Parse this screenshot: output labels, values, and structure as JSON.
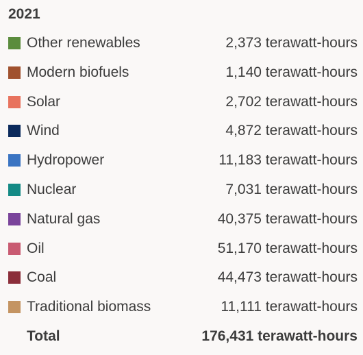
{
  "chart_data": {
    "type": "table",
    "title": "2021",
    "unit": "terawatt-hours",
    "rows": [
      {
        "label": "Other renewables",
        "value": 2373,
        "display": "2,373 terawatt-hours",
        "color": "#5b8c3d"
      },
      {
        "label": "Modern biofuels",
        "value": 1140,
        "display": "1,140 terawatt-hours",
        "color": "#a0512e"
      },
      {
        "label": "Solar",
        "value": 2702,
        "display": "2,702 terawatt-hours",
        "color": "#e8735e"
      },
      {
        "label": "Wind",
        "value": 4872,
        "display": "4,872 terawatt-hours",
        "color": "#0b2a5c"
      },
      {
        "label": "Hydropower",
        "value": 11183,
        "display": "11,183 terawatt-hours",
        "color": "#3a74c2"
      },
      {
        "label": "Nuclear",
        "value": 7031,
        "display": "7,031 terawatt-hours",
        "color": "#148a85"
      },
      {
        "label": "Natural gas",
        "value": 40375,
        "display": "40,375 terawatt-hours",
        "color": "#7a449b"
      },
      {
        "label": "Oil",
        "value": 51170,
        "display": "51,170 terawatt-hours",
        "color": "#c95b72"
      },
      {
        "label": "Coal",
        "value": 44473,
        "display": "44,473 terawatt-hours",
        "color": "#8b2e3a"
      },
      {
        "label": "Traditional biomass",
        "value": 11111,
        "display": "11,111 terawatt-hours",
        "color": "#c49462"
      }
    ],
    "total": {
      "label": "Total",
      "value": 176431,
      "display": "176,431 terawatt-hours"
    }
  }
}
